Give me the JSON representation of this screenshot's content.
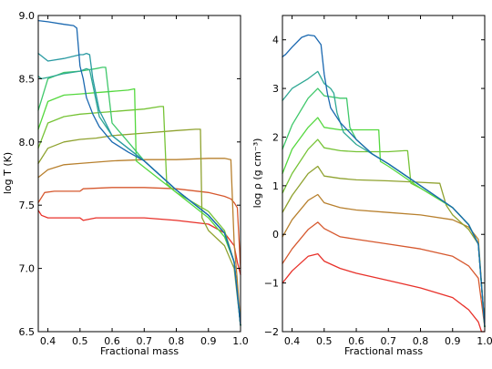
{
  "chart_data": [
    {
      "type": "line",
      "title": "",
      "xlabel": "Fractional mass",
      "ylabel": "log T (K)",
      "xlim": [
        0.37,
        1.0
      ],
      "ylim": [
        6.5,
        9.0
      ],
      "xticks": [
        "0.4",
        "0.5",
        "0.6",
        "0.7",
        "0.8",
        "0.9",
        "1.0"
      ],
      "yticks": [
        "6.5",
        "7.0",
        "7.5",
        "8.0",
        "8.5",
        "9.0"
      ],
      "grid": false,
      "series": [
        {
          "color": "#e8312a",
          "x": [
            0.37,
            0.38,
            0.4,
            0.45,
            0.5,
            0.51,
            0.55,
            0.6,
            0.7,
            0.8,
            0.9,
            0.95,
            0.98,
            0.99,
            1.0
          ],
          "y": [
            7.46,
            7.42,
            7.4,
            7.4,
            7.4,
            7.38,
            7.4,
            7.4,
            7.4,
            7.38,
            7.35,
            7.28,
            7.18,
            7.05,
            6.95
          ]
        },
        {
          "color": "#d6582e",
          "x": [
            0.37,
            0.39,
            0.42,
            0.5,
            0.51,
            0.6,
            0.7,
            0.8,
            0.9,
            0.95,
            0.97,
            0.98,
            0.99,
            1.0
          ],
          "y": [
            7.52,
            7.6,
            7.61,
            7.61,
            7.63,
            7.64,
            7.64,
            7.63,
            7.6,
            7.57,
            7.55,
            7.52,
            7.48,
            7.0
          ]
        },
        {
          "color": "#b8802e",
          "x": [
            0.37,
            0.4,
            0.45,
            0.5,
            0.55,
            0.6,
            0.7,
            0.8,
            0.9,
            0.95,
            0.97,
            0.98,
            0.99,
            1.0
          ],
          "y": [
            7.72,
            7.78,
            7.82,
            7.83,
            7.84,
            7.85,
            7.86,
            7.86,
            7.87,
            7.87,
            7.86,
            7.2,
            6.9,
            6.55
          ]
        },
        {
          "color": "#8fa22f",
          "x": [
            0.37,
            0.4,
            0.45,
            0.5,
            0.55,
            0.6,
            0.7,
            0.8,
            0.86,
            0.875,
            0.88,
            0.9,
            0.95,
            0.98,
            1.0
          ],
          "y": [
            7.83,
            7.95,
            8.0,
            8.02,
            8.03,
            8.05,
            8.07,
            8.09,
            8.1,
            8.1,
            7.4,
            7.3,
            7.18,
            7.0,
            6.55
          ]
        },
        {
          "color": "#76c336",
          "x": [
            0.37,
            0.4,
            0.45,
            0.5,
            0.55,
            0.6,
            0.7,
            0.75,
            0.76,
            0.77,
            0.8,
            0.9,
            0.95,
            0.98,
            1.0
          ],
          "y": [
            7.95,
            8.15,
            8.2,
            8.22,
            8.23,
            8.24,
            8.26,
            8.28,
            8.28,
            7.67,
            7.6,
            7.45,
            7.3,
            7.05,
            6.55
          ]
        },
        {
          "color": "#54d83e",
          "x": [
            0.37,
            0.4,
            0.45,
            0.5,
            0.55,
            0.6,
            0.65,
            0.67,
            0.675,
            0.7,
            0.8,
            0.9,
            0.95,
            0.98,
            1.0
          ],
          "y": [
            8.1,
            8.32,
            8.37,
            8.38,
            8.39,
            8.4,
            8.41,
            8.42,
            7.85,
            7.8,
            7.6,
            7.4,
            7.25,
            7.05,
            6.55
          ]
        },
        {
          "color": "#3fc86a",
          "x": [
            0.37,
            0.4,
            0.45,
            0.5,
            0.55,
            0.57,
            0.58,
            0.6,
            0.65,
            0.7,
            0.8,
            0.9,
            0.95,
            0.98,
            1.0
          ],
          "y": [
            8.25,
            8.5,
            8.55,
            8.56,
            8.58,
            8.59,
            8.59,
            8.15,
            8.0,
            7.85,
            7.62,
            7.42,
            7.28,
            7.05,
            6.55
          ]
        },
        {
          "color": "#2fa894",
          "x": [
            0.37,
            0.38,
            0.4,
            0.45,
            0.5,
            0.52,
            0.53,
            0.54,
            0.56,
            0.6,
            0.7,
            0.8,
            0.9,
            0.95,
            0.98,
            1.0
          ],
          "y": [
            8.52,
            8.5,
            8.51,
            8.54,
            8.56,
            8.58,
            8.57,
            8.45,
            8.2,
            8.05,
            7.85,
            7.62,
            7.42,
            7.28,
            7.05,
            6.55
          ]
        },
        {
          "color": "#2a9aa2",
          "x": [
            0.37,
            0.4,
            0.45,
            0.5,
            0.51,
            0.52,
            0.53,
            0.54,
            0.56,
            0.6,
            0.7,
            0.8,
            0.9,
            0.95,
            0.98,
            1.0
          ],
          "y": [
            8.7,
            8.64,
            8.66,
            8.69,
            8.69,
            8.7,
            8.69,
            8.5,
            8.25,
            8.05,
            7.85,
            7.62,
            7.42,
            7.28,
            7.05,
            6.55
          ]
        },
        {
          "color": "#1a68b0",
          "x": [
            0.37,
            0.4,
            0.45,
            0.48,
            0.49,
            0.5,
            0.51,
            0.52,
            0.54,
            0.56,
            0.6,
            0.65,
            0.7,
            0.8,
            0.9,
            0.95,
            0.98,
            1.0
          ],
          "y": [
            8.96,
            8.95,
            8.93,
            8.92,
            8.9,
            8.6,
            8.5,
            8.35,
            8.22,
            8.12,
            8.0,
            7.92,
            7.85,
            7.62,
            7.42,
            7.28,
            7.05,
            6.55
          ]
        }
      ]
    },
    {
      "type": "line",
      "title": "",
      "xlabel": "Fractional mass",
      "ylabel": "log ρ (g cm⁻³)",
      "xlim": [
        0.37,
        1.0
      ],
      "ylim": [
        -2,
        4.5
      ],
      "xticks": [
        "0.4",
        "0.5",
        "0.6",
        "0.7",
        "0.8",
        "0.9",
        "1.0"
      ],
      "yticks": [
        "−2",
        "−1",
        "0",
        "1",
        "2",
        "3",
        "4"
      ],
      "grid": false,
      "series": [
        {
          "color": "#e8312a",
          "x": [
            0.37,
            0.4,
            0.45,
            0.48,
            0.5,
            0.55,
            0.6,
            0.7,
            0.8,
            0.9,
            0.95,
            0.98,
            0.99,
            1.0
          ],
          "y": [
            -1.0,
            -0.75,
            -0.45,
            -0.4,
            -0.55,
            -0.7,
            -0.8,
            -0.95,
            -1.1,
            -1.3,
            -1.55,
            -1.8,
            -2.0,
            -2.0
          ]
        },
        {
          "color": "#d6582e",
          "x": [
            0.37,
            0.4,
            0.45,
            0.48,
            0.5,
            0.55,
            0.6,
            0.7,
            0.8,
            0.9,
            0.95,
            0.98,
            1.0
          ],
          "y": [
            -0.6,
            -0.3,
            0.1,
            0.25,
            0.12,
            -0.05,
            -0.1,
            -0.2,
            -0.3,
            -0.45,
            -0.65,
            -0.9,
            -1.9
          ]
        },
        {
          "color": "#b8802e",
          "x": [
            0.37,
            0.4,
            0.45,
            0.48,
            0.5,
            0.55,
            0.6,
            0.7,
            0.8,
            0.9,
            0.95,
            0.98,
            1.0
          ],
          "y": [
            -0.05,
            0.3,
            0.7,
            0.82,
            0.65,
            0.55,
            0.5,
            0.45,
            0.4,
            0.3,
            0.15,
            -0.1,
            -1.9
          ]
        },
        {
          "color": "#8fa22f",
          "x": [
            0.37,
            0.4,
            0.45,
            0.48,
            0.5,
            0.55,
            0.6,
            0.7,
            0.8,
            0.86,
            0.88,
            0.9,
            0.95,
            0.98,
            1.0
          ],
          "y": [
            0.45,
            0.8,
            1.25,
            1.4,
            1.2,
            1.15,
            1.12,
            1.1,
            1.07,
            1.05,
            0.6,
            0.4,
            0.1,
            -0.2,
            -1.9
          ]
        },
        {
          "color": "#76c336",
          "x": [
            0.37,
            0.4,
            0.45,
            0.48,
            0.5,
            0.55,
            0.6,
            0.7,
            0.75,
            0.76,
            0.77,
            0.8,
            0.9,
            0.95,
            0.98,
            1.0
          ],
          "y": [
            0.85,
            1.25,
            1.75,
            1.95,
            1.78,
            1.72,
            1.7,
            1.7,
            1.72,
            1.72,
            1.05,
            0.95,
            0.55,
            0.2,
            -0.2,
            -1.9
          ]
        },
        {
          "color": "#54d83e",
          "x": [
            0.37,
            0.4,
            0.45,
            0.48,
            0.5,
            0.55,
            0.6,
            0.65,
            0.67,
            0.675,
            0.7,
            0.8,
            0.9,
            0.95,
            0.98,
            1.0
          ],
          "y": [
            1.25,
            1.75,
            2.2,
            2.4,
            2.2,
            2.15,
            2.15,
            2.15,
            2.15,
            1.5,
            1.4,
            0.95,
            0.55,
            0.2,
            -0.2,
            -1.9
          ]
        },
        {
          "color": "#3fc86a",
          "x": [
            0.37,
            0.4,
            0.45,
            0.48,
            0.5,
            0.55,
            0.57,
            0.58,
            0.6,
            0.65,
            0.7,
            0.8,
            0.9,
            0.95,
            0.98,
            1.0
          ],
          "y": [
            1.75,
            2.25,
            2.8,
            3.0,
            2.85,
            2.8,
            2.8,
            2.2,
            1.95,
            1.65,
            1.45,
            1.0,
            0.55,
            0.2,
            -0.2,
            -1.9
          ]
        },
        {
          "color": "#2fa894",
          "x": [
            0.37,
            0.4,
            0.45,
            0.48,
            0.5,
            0.52,
            0.53,
            0.54,
            0.56,
            0.6,
            0.7,
            0.8,
            0.9,
            0.95,
            0.98,
            1.0
          ],
          "y": [
            2.75,
            3.0,
            3.2,
            3.35,
            3.1,
            3.0,
            2.9,
            2.5,
            2.1,
            1.85,
            1.45,
            1.0,
            0.55,
            0.2,
            -0.2,
            -1.9
          ]
        },
        {
          "color": "#1a68b0",
          "x": [
            0.37,
            0.38,
            0.4,
            0.43,
            0.45,
            0.47,
            0.49,
            0.5,
            0.51,
            0.52,
            0.55,
            0.6,
            0.65,
            0.7,
            0.8,
            0.9,
            0.95,
            0.98,
            1.0
          ],
          "y": [
            3.65,
            3.7,
            3.85,
            4.05,
            4.1,
            4.08,
            3.9,
            3.3,
            2.9,
            2.6,
            2.3,
            1.95,
            1.65,
            1.45,
            1.0,
            0.55,
            0.2,
            -0.2,
            -1.9
          ]
        }
      ]
    }
  ]
}
